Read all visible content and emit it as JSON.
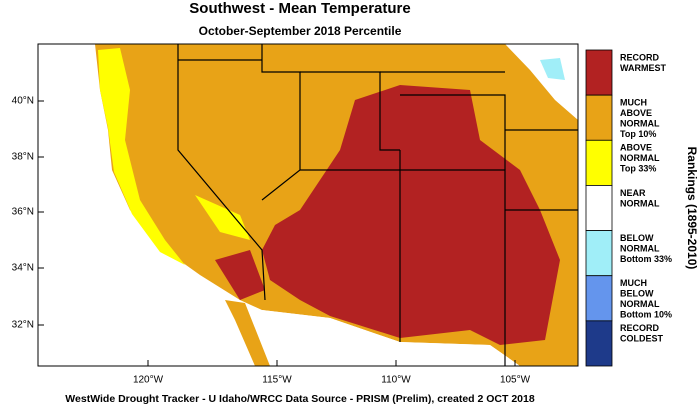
{
  "title": "Southwest - Mean Temperature",
  "subtitle": "October-September 2018 Percentile",
  "map": {
    "lat_labels": [
      "40°N",
      "38°N",
      "36°N",
      "34°N",
      "32°N"
    ],
    "lon_labels": [
      "120°W",
      "115°W",
      "110°W",
      "105°W"
    ]
  },
  "legend": {
    "title": "Rankings (1895-2010)",
    "items": [
      {
        "lines": [
          "RECORD",
          "WARMEST"
        ],
        "color": "#b22222"
      },
      {
        "lines": [
          "MUCH",
          "ABOVE",
          "NORMAL",
          "Top 10%"
        ],
        "color": "#e8a317"
      },
      {
        "lines": [
          "ABOVE",
          "NORMAL",
          "Top 33%"
        ],
        "color": "#ffff00"
      },
      {
        "lines": [
          "NEAR",
          "NORMAL"
        ],
        "color": "#ffffff"
      },
      {
        "lines": [
          "BELOW",
          "NORMAL",
          "Bottom 33%"
        ],
        "color": "#a0eef8"
      },
      {
        "lines": [
          "MUCH",
          "BELOW",
          "NORMAL",
          "Bottom 10%"
        ],
        "color": "#6495ed"
      },
      {
        "lines": [
          "RECORD",
          "COLDEST"
        ],
        "color": "#1e3a8a"
      }
    ]
  },
  "footer": "WestWide Drought Tracker - U Idaho/WRCC  Data Source - PRISM (Prelim), created  2 OCT 2018"
}
